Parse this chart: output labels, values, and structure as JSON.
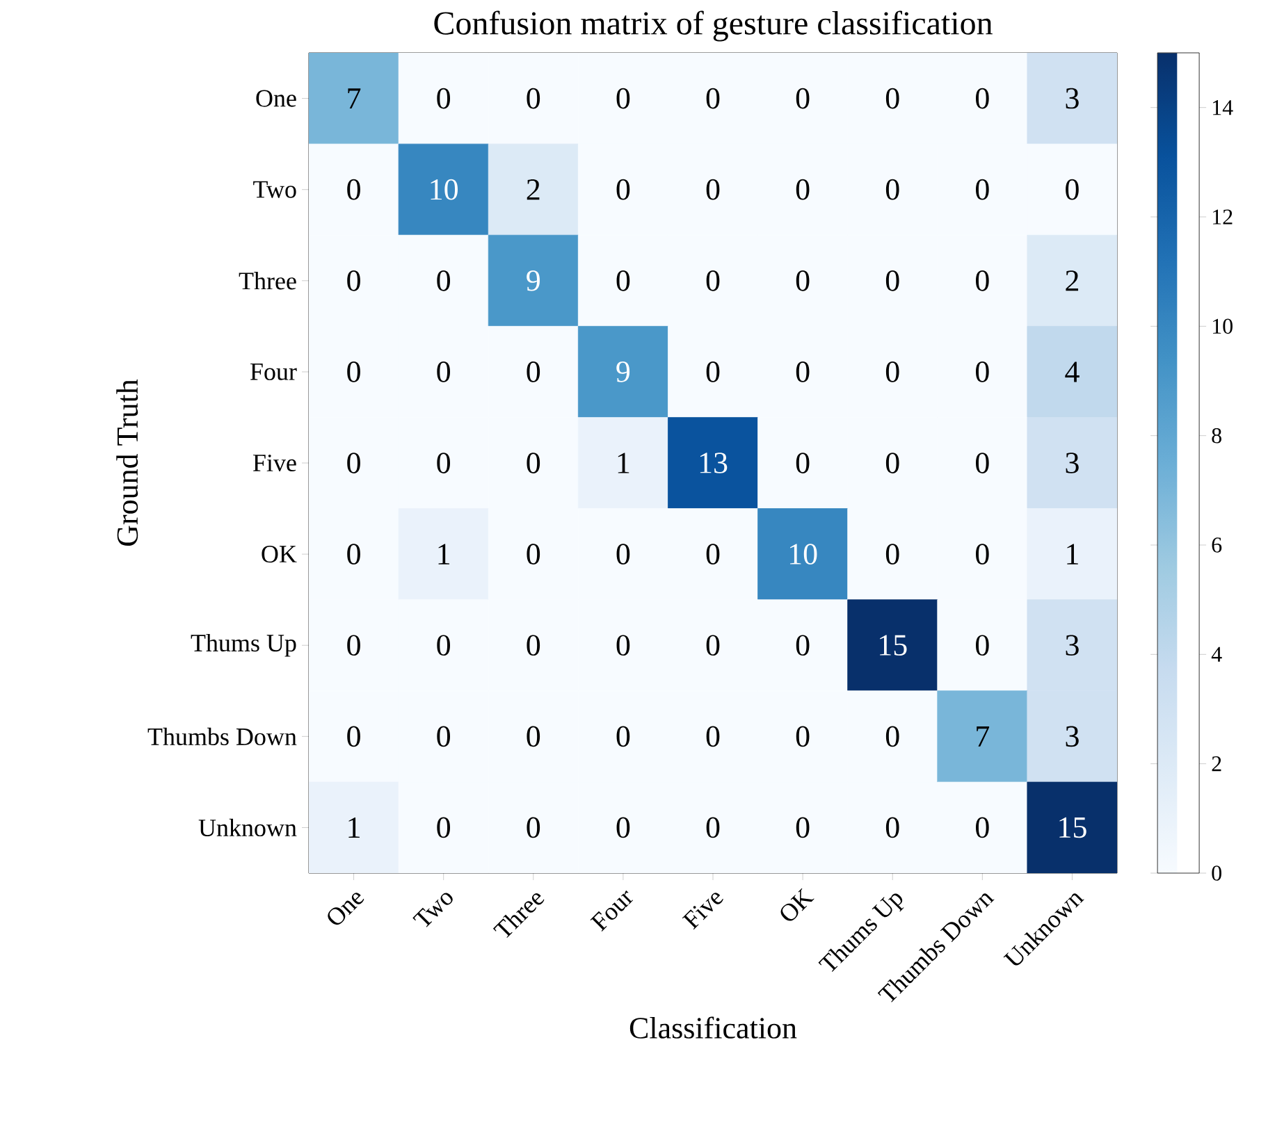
{
  "chart_data": {
    "type": "heatmap",
    "title": "Confusion matrix of gesture classification",
    "xlabel": "Classification",
    "ylabel": "Ground Truth",
    "categories": [
      "One",
      "Two",
      "Three",
      "Four",
      "Five",
      "OK",
      "Thums Up",
      "Thumbs Down",
      "Unknown"
    ],
    "y_categories": [
      "One",
      "Two",
      "Three",
      "Four",
      "Five",
      "OK",
      "Thums Up",
      "Thumbs Down",
      "Unknown"
    ],
    "cells": [
      [
        7,
        0,
        0,
        0,
        0,
        0,
        0,
        0,
        3
      ],
      [
        0,
        10,
        2,
        0,
        0,
        0,
        0,
        0,
        0
      ],
      [
        0,
        0,
        9,
        0,
        0,
        0,
        0,
        0,
        2
      ],
      [
        0,
        0,
        0,
        9,
        0,
        0,
        0,
        0,
        4
      ],
      [
        0,
        0,
        0,
        1,
        13,
        0,
        0,
        0,
        3
      ],
      [
        0,
        1,
        0,
        0,
        0,
        10,
        0,
        0,
        1
      ],
      [
        0,
        0,
        0,
        0,
        0,
        0,
        15,
        0,
        3
      ],
      [
        0,
        0,
        0,
        0,
        0,
        0,
        0,
        7,
        3
      ],
      [
        1,
        0,
        0,
        0,
        0,
        0,
        0,
        0,
        15
      ]
    ],
    "data_labels": true,
    "clim": [
      0,
      15
    ],
    "cticks": [
      0,
      2,
      4,
      6,
      8,
      10,
      12,
      14
    ]
  }
}
